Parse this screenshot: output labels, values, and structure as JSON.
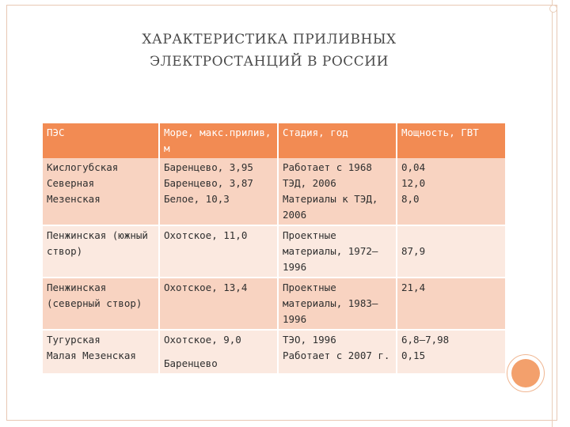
{
  "title": {
    "line1": "ХАРАКТЕРИСТИКА ПРИЛИВНЫХ",
    "line2": "ЭЛЕКТРОСТАНЦИЙ В РОССИИ"
  },
  "table": {
    "headers": [
      "ПЭС",
      "Море, макс.прилив, м",
      "Стадия, год",
      "Мощность, ГВТ"
    ],
    "rows": [
      {
        "station": [
          "Кислогубская",
          "Северная",
          "Мезенская"
        ],
        "sea": [
          "Баренцево, 3,95",
          "Баренцево, 3,87",
          "Белое, 10,3"
        ],
        "stage": [
          "Работает с 1968",
          "ТЭД, 2006",
          "Материалы к ТЭД, 2006"
        ],
        "power": [
          "0,04",
          "12,0",
          "8,0"
        ]
      },
      {
        "station": [
          "Пенжинская (южный створ)"
        ],
        "sea": [
          "Охотское, 11,0"
        ],
        "stage": [
          "Проектные материалы, 1972—1996"
        ],
        "power": [
          "87,9"
        ]
      },
      {
        "station": [
          "Пенжинская (северный створ)"
        ],
        "sea": [
          "Охотское, 13,4"
        ],
        "stage": [
          "Проектные материалы, 1983—1996"
        ],
        "power": [
          "21,4"
        ]
      },
      {
        "station": [
          "Тугурская",
          "Малая Мезенская"
        ],
        "sea": [
          "Охотское, 9,0",
          "Баренцево"
        ],
        "stage": [
          "ТЭО, 1996",
          "Работает с 2007 г."
        ],
        "power": [
          "6,8—7,98",
          "0,15"
        ]
      }
    ]
  }
}
